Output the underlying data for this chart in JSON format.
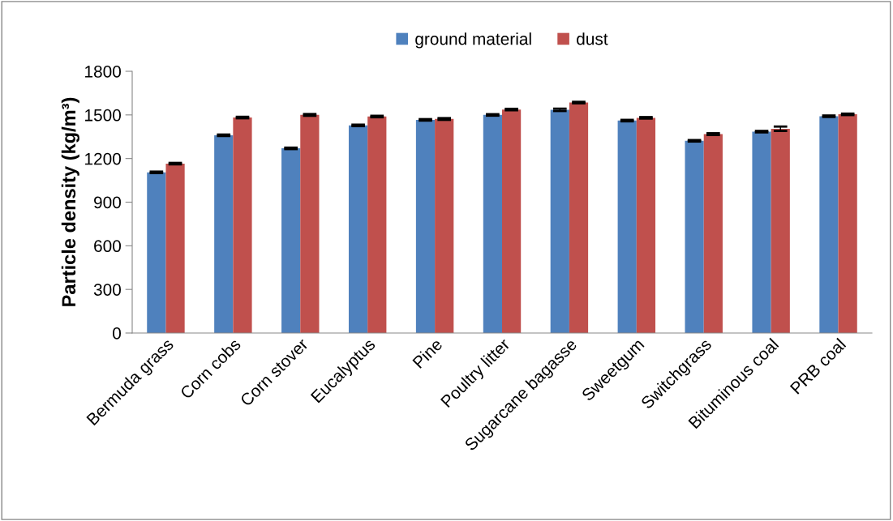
{
  "chart_data": {
    "type": "bar",
    "ylabel": "Particle density (kg/m³)",
    "categories": [
      "Bermuda grass",
      "Corn cobs",
      "Corn stover",
      "Eucalyptus",
      "Pine",
      "Poultry litter",
      "Sugarcane bagasse",
      "Sweetgum",
      "Switchgrass",
      "Bituminous coal",
      "PRB coal"
    ],
    "series": [
      {
        "name": "ground material",
        "color": "#4f81bd",
        "values": [
          1105,
          1360,
          1270,
          1428,
          1466,
          1500,
          1535,
          1461,
          1322,
          1385,
          1491
        ],
        "errors": [
          5,
          5,
          5,
          5,
          5,
          5,
          8,
          5,
          5,
          5,
          5
        ]
      },
      {
        "name": "dust",
        "color": "#c0504d",
        "values": [
          1165,
          1482,
          1500,
          1489,
          1472,
          1537,
          1585,
          1480,
          1368,
          1405,
          1504
        ],
        "errors": [
          5,
          5,
          6,
          5,
          6,
          5,
          5,
          5,
          6,
          15,
          5
        ]
      }
    ],
    "ylim": [
      0,
      1800
    ],
    "yticks": [
      0,
      300,
      600,
      900,
      1200,
      1500,
      1800
    ],
    "grid": false,
    "legend": "top"
  }
}
